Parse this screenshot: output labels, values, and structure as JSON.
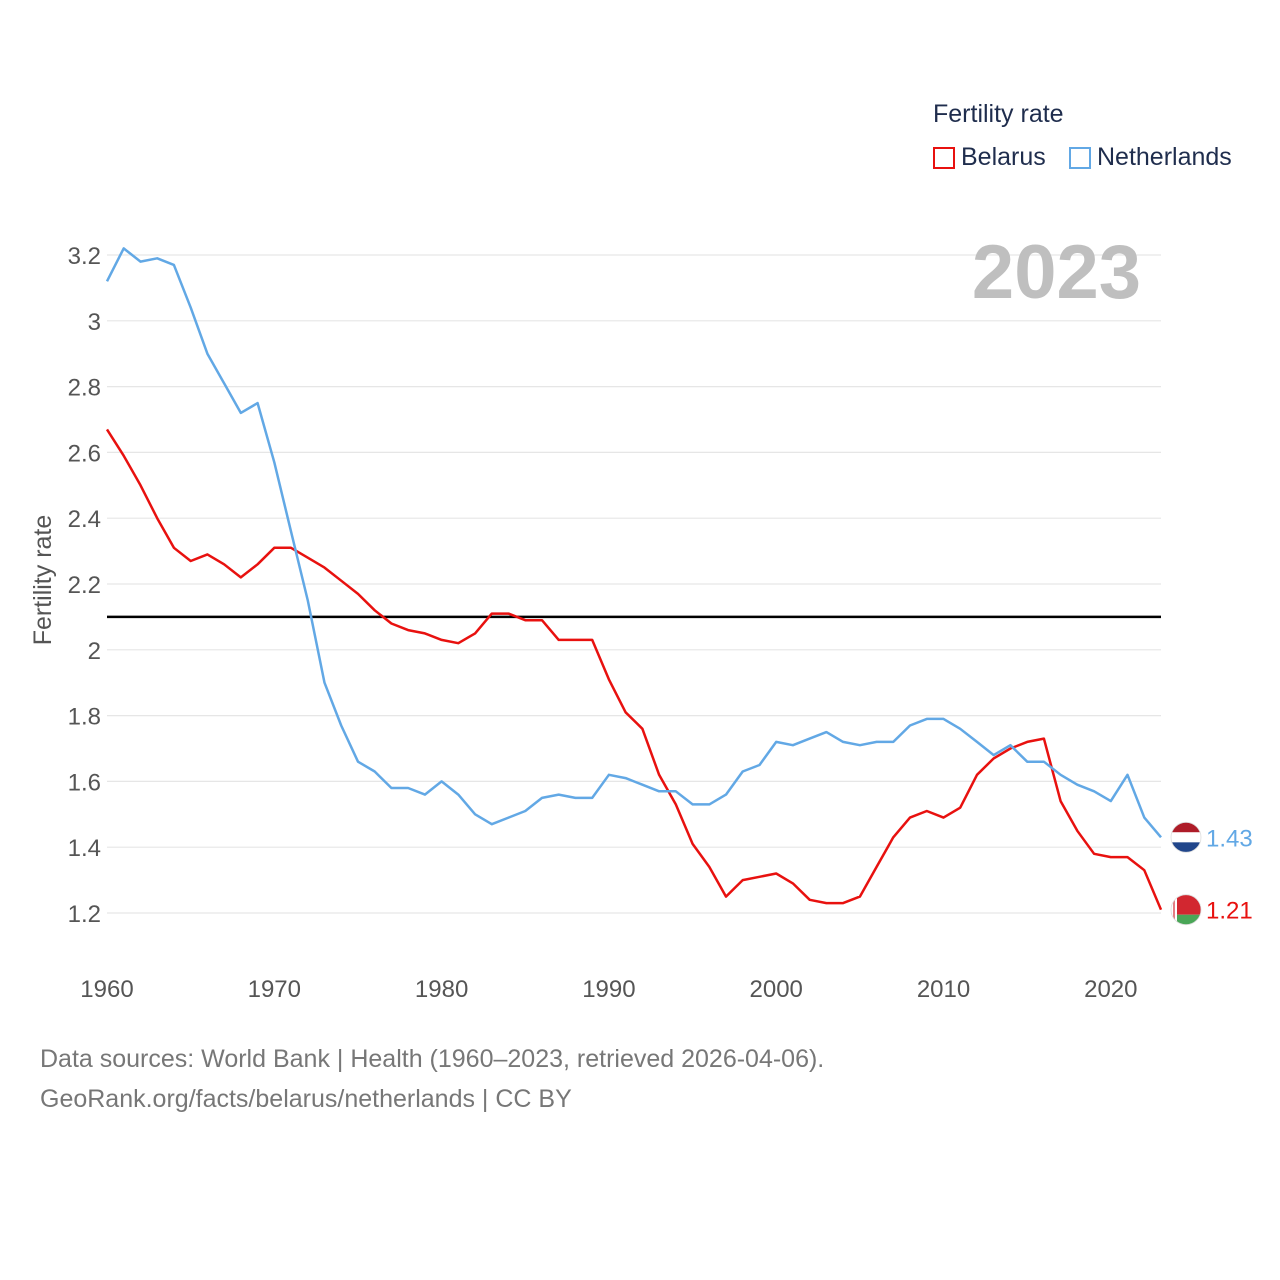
{
  "legend": {
    "title": "Fertility rate",
    "items": [
      {
        "label": "Belarus",
        "color": "#e8110f"
      },
      {
        "label": "Netherlands",
        "color": "#62a8e5"
      }
    ]
  },
  "footer": {
    "line1": "Data sources: World Bank | Health (1960–2023, retrieved 2026-04-06).",
    "line2": "GeoRank.org/facts/belarus/netherlands | CC BY"
  },
  "chart_data": {
    "type": "line",
    "title": "Fertility rate",
    "year_label": "2023",
    "xlabel": "",
    "ylabel": "Fertility rate",
    "xlim": [
      1960,
      2023
    ],
    "ylim": [
      1.1,
      3.3
    ],
    "x_ticks": [
      1960,
      1970,
      1980,
      1990,
      2000,
      2010,
      2020
    ],
    "y_ticks": [
      1.2,
      1.4,
      1.6,
      1.8,
      2,
      2.2,
      2.4,
      2.6,
      2.8,
      3,
      3.2
    ],
    "y_tick_labels": [
      "1.2",
      "1.4",
      "1.6",
      "1.8",
      "2",
      "2.2",
      "2.4",
      "2.6",
      "2.8",
      "3",
      "3.2"
    ],
    "reference_line": {
      "value": 2.1,
      "color": "#000000"
    },
    "x": [
      1960,
      1961,
      1962,
      1963,
      1964,
      1965,
      1966,
      1967,
      1968,
      1969,
      1970,
      1971,
      1972,
      1973,
      1974,
      1975,
      1976,
      1977,
      1978,
      1979,
      1980,
      1981,
      1982,
      1983,
      1984,
      1985,
      1986,
      1987,
      1988,
      1989,
      1990,
      1991,
      1992,
      1993,
      1994,
      1995,
      1996,
      1997,
      1998,
      1999,
      2000,
      2001,
      2002,
      2003,
      2004,
      2005,
      2006,
      2007,
      2008,
      2009,
      2010,
      2011,
      2012,
      2013,
      2014,
      2015,
      2016,
      2017,
      2018,
      2019,
      2020,
      2021,
      2022,
      2023
    ],
    "series": [
      {
        "name": "Belarus",
        "color": "#e8110f",
        "end_label": "1.21",
        "values": [
          2.67,
          2.59,
          2.5,
          2.4,
          2.31,
          2.27,
          2.29,
          2.26,
          2.22,
          2.26,
          2.31,
          2.31,
          2.28,
          2.25,
          2.21,
          2.17,
          2.12,
          2.08,
          2.06,
          2.05,
          2.03,
          2.02,
          2.05,
          2.11,
          2.11,
          2.09,
          2.09,
          2.03,
          2.03,
          2.03,
          1.91,
          1.81,
          1.76,
          1.62,
          1.53,
          1.41,
          1.34,
          1.25,
          1.3,
          1.31,
          1.32,
          1.29,
          1.24,
          1.23,
          1.23,
          1.25,
          1.34,
          1.43,
          1.49,
          1.51,
          1.49,
          1.52,
          1.62,
          1.67,
          1.7,
          1.72,
          1.73,
          1.54,
          1.45,
          1.38,
          1.37,
          1.37,
          1.33,
          1.21
        ]
      },
      {
        "name": "Netherlands",
        "color": "#62a8e5",
        "end_label": "1.43",
        "values": [
          3.12,
          3.22,
          3.18,
          3.19,
          3.17,
          3.04,
          2.9,
          2.81,
          2.72,
          2.75,
          2.57,
          2.36,
          2.15,
          1.9,
          1.77,
          1.66,
          1.63,
          1.58,
          1.58,
          1.56,
          1.6,
          1.56,
          1.5,
          1.47,
          1.49,
          1.51,
          1.55,
          1.56,
          1.55,
          1.55,
          1.62,
          1.61,
          1.59,
          1.57,
          1.57,
          1.53,
          1.53,
          1.56,
          1.63,
          1.65,
          1.72,
          1.71,
          1.73,
          1.75,
          1.72,
          1.71,
          1.72,
          1.72,
          1.77,
          1.79,
          1.79,
          1.76,
          1.72,
          1.68,
          1.71,
          1.66,
          1.66,
          1.62,
          1.59,
          1.57,
          1.54,
          1.62,
          1.49,
          1.43
        ]
      }
    ]
  }
}
